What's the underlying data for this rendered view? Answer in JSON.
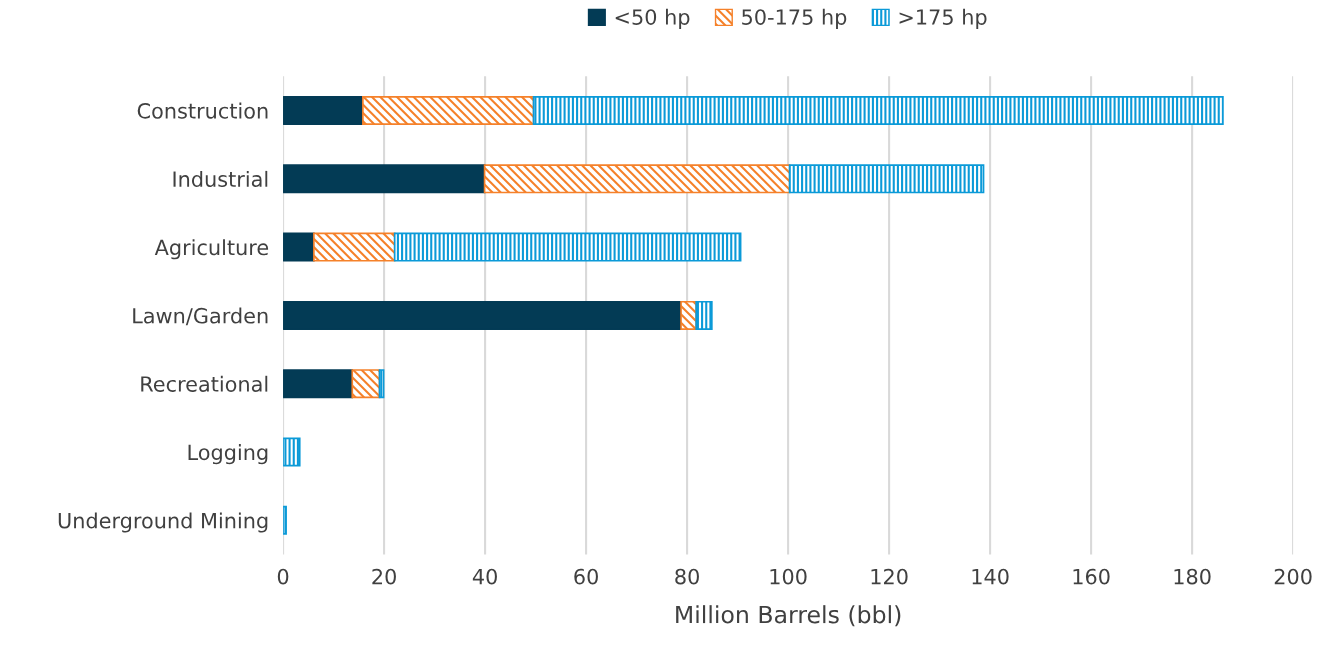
{
  "chart_data": {
    "type": "bar",
    "orientation": "horizontal",
    "stacked": true,
    "xlabel": "Million Barrels (bbl)",
    "categories": [
      "Construction",
      "Industrial",
      "Agriculture",
      "Lawn/Garden",
      "Recreational",
      "Logging",
      "Underground Mining"
    ],
    "series": [
      {
        "name": "<50 hp",
        "color": "#033b55",
        "values": [
          15.8,
          39.9,
          6.1,
          78.8,
          13.7,
          0,
          0
        ]
      },
      {
        "name": "50-175 hp",
        "color": "#f5812a",
        "values": [
          33.8,
          60.4,
          16.0,
          3.0,
          5.4,
          0,
          0
        ]
      },
      {
        "name": ">175 hp",
        "color": "#0b9ad8",
        "values": [
          136.5,
          38.4,
          68.5,
          3.1,
          0.8,
          3.3,
          0.6
        ]
      }
    ],
    "xlim": [
      0,
      200
    ],
    "xticks": [
      0,
      20,
      40,
      60,
      80,
      100,
      120,
      140,
      160,
      180,
      200
    ],
    "grid": "x",
    "legend": "top"
  }
}
